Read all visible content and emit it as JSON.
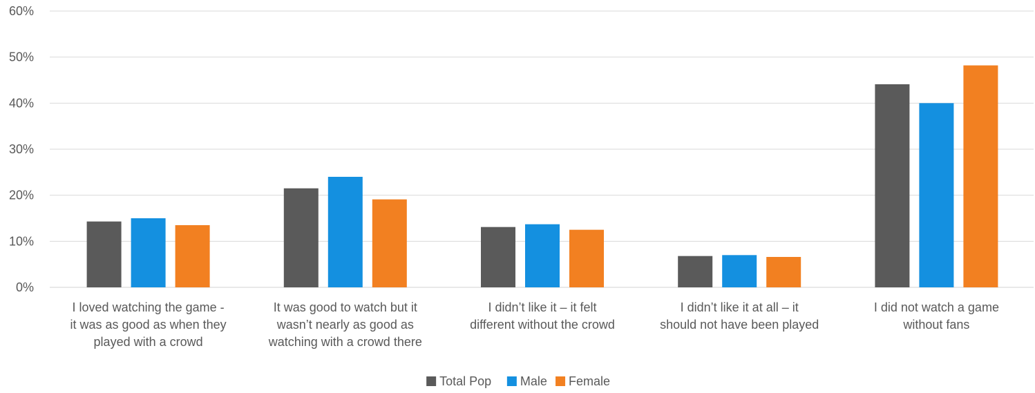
{
  "chart_data": {
    "type": "bar",
    "title": "",
    "xlabel": "",
    "ylabel": "",
    "ylim": [
      0,
      60
    ],
    "y_tick_step": 10,
    "y_tick_format": "percent",
    "grid": true,
    "legend_position": "bottom",
    "categories": [
      [
        "I loved watching the game -",
        "it was as good as when they",
        "played with a crowd"
      ],
      [
        "It was good to watch but it",
        "wasn’t nearly as good as",
        "watching with a crowd there"
      ],
      [
        "I didn’t like it – it felt",
        "different without the crowd"
      ],
      [
        "I didn’t like it at all – it",
        "should not have been played"
      ],
      [
        "I did not watch a game",
        "without fans"
      ]
    ],
    "series": [
      {
        "name": "Total Pop",
        "color": "#5a5a5a",
        "values": [
          14.3,
          21.5,
          13.1,
          6.8,
          44.1
        ]
      },
      {
        "name": "Male",
        "color": "#1490e0",
        "values": [
          15.0,
          24.0,
          13.7,
          7.0,
          40.0
        ]
      },
      {
        "name": "Female",
        "color": "#f28021",
        "values": [
          13.5,
          19.1,
          12.5,
          6.6,
          48.2
        ]
      }
    ]
  }
}
